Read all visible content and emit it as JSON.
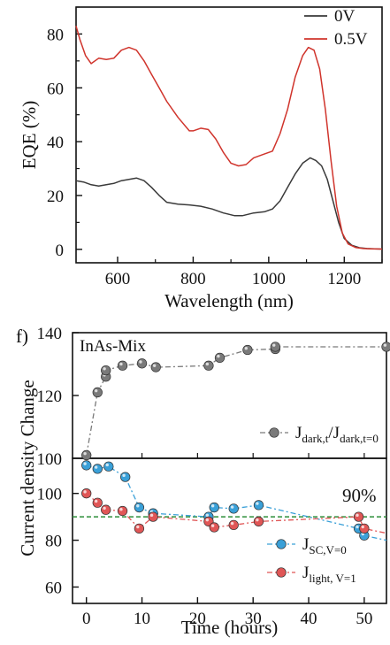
{
  "chart_data": [
    {
      "type": "line",
      "ylabel": "EQE (%)",
      "xlabel": "Wavelength (nm)",
      "xlim": [
        490,
        1300
      ],
      "ylim": [
        -5,
        90
      ],
      "xticks": [
        600,
        800,
        1000,
        1200
      ],
      "yticks": [
        0,
        20,
        40,
        60,
        80
      ],
      "legend_position": "top-right",
      "series": [
        {
          "name": "0V",
          "color": "#3a3a3a",
          "x": [
            490,
            510,
            530,
            550,
            570,
            590,
            610,
            630,
            650,
            670,
            690,
            710,
            730,
            760,
            790,
            820,
            850,
            880,
            910,
            930,
            960,
            990,
            1010,
            1030,
            1050,
            1070,
            1090,
            1110,
            1125,
            1140,
            1155,
            1170,
            1185,
            1200,
            1220,
            1240,
            1260,
            1280,
            1300
          ],
          "y": [
            25.5,
            25,
            24,
            23.5,
            24,
            24.5,
            25.5,
            26,
            26.5,
            25.5,
            23,
            20,
            17.5,
            16.8,
            16.5,
            16,
            15,
            13.5,
            12.5,
            12.5,
            13.5,
            14,
            15,
            18,
            23,
            28,
            32,
            34,
            33,
            31,
            26,
            18,
            10,
            4,
            1.5,
            0.6,
            0.3,
            0.2,
            0.1
          ]
        },
        {
          "name": "0.5V",
          "color": "#d0342c",
          "x": [
            490,
            500,
            515,
            530,
            550,
            570,
            590,
            610,
            630,
            650,
            670,
            690,
            710,
            730,
            760,
            790,
            800,
            820,
            840,
            860,
            880,
            900,
            920,
            940,
            960,
            990,
            1010,
            1030,
            1050,
            1070,
            1090,
            1105,
            1120,
            1135,
            1150,
            1165,
            1180,
            1195,
            1210,
            1230,
            1250,
            1270,
            1300
          ],
          "y": [
            83,
            78,
            72,
            69,
            71,
            70.5,
            71,
            74,
            75,
            74,
            70,
            65,
            60,
            55,
            49,
            44,
            44,
            45,
            44.5,
            41,
            36,
            32,
            31,
            31.5,
            34,
            35.5,
            36.5,
            43,
            52,
            64,
            72,
            75,
            74,
            67,
            52,
            33,
            16,
            6,
            2,
            0.7,
            0.3,
            0.2,
            0.1
          ]
        }
      ]
    },
    {
      "type": "scatter",
      "panel_label": "f)",
      "annotation": "InAs-Mix",
      "xlim": [
        -2.5,
        54
      ],
      "ylim": [
        100,
        140
      ],
      "yticks": [
        100,
        120,
        140
      ],
      "legend_position": "bottom-right",
      "series": [
        {
          "name": "J_dark,t/J_dark,t=0",
          "legend_main": "J",
          "legend_sub1": "dark,t",
          "legend_mid": "/J",
          "legend_sub2": "dark,t=0",
          "color": "#7a7a7a",
          "x": [
            0,
            2,
            3.5,
            3.5,
            6.5,
            10,
            12.5,
            22,
            24,
            29,
            34,
            34,
            54
          ],
          "y": [
            101,
            121,
            126,
            128,
            129.5,
            130.2,
            129,
            129.5,
            132,
            134.5,
            134.8,
            135.5,
            135.5
          ]
        }
      ]
    },
    {
      "type": "scatter",
      "ylabel": "Current density Change",
      "xlabel": "Time (hours)",
      "xlim": [
        -2.5,
        54
      ],
      "ylim": [
        53,
        115
      ],
      "xticks": [
        0,
        10,
        20,
        30,
        40,
        50
      ],
      "yticks": [
        60,
        80,
        100
      ],
      "reference_line": {
        "y": 90,
        "label": "90%",
        "color": "#2f8f3a"
      },
      "legend_position": "bottom-right",
      "series": [
        {
          "name": "J_SC,V=0",
          "legend_main": "J",
          "legend_sub1": "SC,V=0",
          "color": "#3aa0d8",
          "x": [
            0,
            2,
            4,
            7,
            9.5,
            12,
            22,
            23,
            26.5,
            31,
            49,
            50,
            54
          ],
          "y": [
            112,
            110.5,
            111.5,
            107,
            94,
            91.5,
            90,
            94,
            93.5,
            95,
            85,
            82,
            80
          ]
        },
        {
          "name": "J_light,V=1",
          "legend_main": "J",
          "legend_sub1": "light, V=1",
          "color": "#e05656",
          "x": [
            0,
            2,
            3.5,
            6.5,
            9.5,
            12,
            22,
            23,
            26.5,
            31,
            49,
            50,
            54
          ],
          "y": [
            100,
            96,
            93,
            92.5,
            85,
            90,
            88,
            85.5,
            86.5,
            88,
            90,
            85,
            83
          ]
        }
      ]
    }
  ]
}
